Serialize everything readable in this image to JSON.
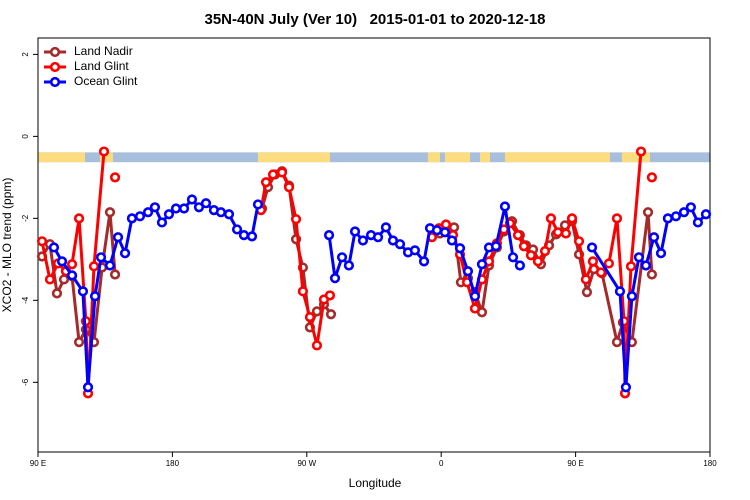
{
  "chart_data": {
    "type": "line",
    "title": "35N-40N July (Ver 10)   2015-01-01 to 2020-12-18",
    "xlabel": "Longitude",
    "ylabel": "XCO2 - MLO trend (ppm)",
    "xlim": [
      90,
      540
    ],
    "ylim": [
      -7.7,
      2.4
    ],
    "xticks": [
      {
        "value": 90,
        "label": "90 E"
      },
      {
        "value": 180,
        "label": "180"
      },
      {
        "value": 270,
        "label": "90 W"
      },
      {
        "value": 360,
        "label": "0"
      },
      {
        "value": 450,
        "label": "90 E"
      },
      {
        "value": 540,
        "label": "180"
      }
    ],
    "yticks": [
      2,
      0,
      -2,
      -4,
      -6
    ],
    "legend": "top-left",
    "strip": {
      "range": [
        -0.39,
        -0.63
      ],
      "ocean_color": "#a7bfdc",
      "land_color": "#fbdc7f",
      "land": [
        [
          90,
          121.5
        ],
        [
          131.5,
          140.2
        ],
        [
          237.3,
          285.5
        ],
        [
          351.1,
          359.2
        ],
        [
          362.5,
          379.3
        ],
        [
          386,
          392.7
        ],
        [
          402.7,
          473
        ],
        [
          481,
          499.8
        ]
      ]
    },
    "series": [
      {
        "name": "Land Nadir",
        "color": "#a52a2a",
        "x": [
          92.7,
          98.0,
          102.7,
          107.4,
          112.8,
          117.5,
          122.1,
          127.5,
          132.9,
          138.2,
          141.6,
          null,
          240.0,
          244.0,
          248.7,
          253.4,
          258.1,
          262.8,
          267.4,
          272.1,
          276.8,
          281.5,
          286.2,
          null,
          359.2,
          363.9,
          368.6,
          373.2,
          377.9,
          382.6,
          387.3,
          392.0,
          397.3,
          402.0,
          407.4,
          412.7,
          416.8,
          421.5,
          426.8,
          432.2,
          436.9,
          442.9,
          447.6,
          452.3,
          457.6,
          462.3,
          467.7,
          477.7,
          481.7,
          487.7,
          498.5,
          501.1
        ],
        "values": [
          -2.93,
          -2.63,
          -3.83,
          -3.49,
          -3.41,
          -5.02,
          -4.71,
          -5.02,
          -3.2,
          -1.85,
          -3.37,
          null,
          -1.76,
          -1.24,
          -0.93,
          -0.85,
          -1.2,
          -2.51,
          -3.2,
          -4.66,
          -4.27,
          -4.1,
          -4.34,
          null,
          -2.37,
          -2.27,
          -2.22,
          -3.56,
          -3.46,
          -3.8,
          -4.29,
          -3.15,
          -2.71,
          -2.32,
          -2.07,
          -2.41,
          -2.66,
          -2.76,
          -3.12,
          -2.66,
          -2.39,
          -2.17,
          -2.07,
          -2.88,
          -3.8,
          -3.24,
          -3.34,
          -5.02,
          -4.54,
          -5.02,
          -1.85,
          -3.37
        ]
      },
      {
        "name": "Land Glint",
        "color": "#ff0000",
        "x": [
          92.7,
          98.0,
          103.4,
          108.7,
          112.8,
          117.5,
          122.1,
          123.5,
          127.5,
          134.2,
          null,
          141.6,
          null,
          239.3,
          242.7,
          247.4,
          253.4,
          258.1,
          262.8,
          267.4,
          272.1,
          276.8,
          281.5,
          285.5,
          null,
          353.8,
          358.5,
          363.2,
          367.9,
          372.6,
          377.3,
          382.6,
          387.3,
          392.0,
          397.3,
          402.0,
          406.1,
          411.4,
          415.4,
          420.1,
          424.8,
          429.5,
          433.5,
          438.2,
          443.5,
          447.6,
          452.3,
          456.9,
          461.6,
          467.0,
          472.3,
          477.7,
          482.4,
          483.1,
          487.1,
          493.8,
          null,
          501.1
        ],
        "values": [
          -2.56,
          -3.49,
          -3.1,
          -3.29,
          -3.12,
          -2.0,
          -4.51,
          -6.27,
          -3.17,
          -0.37,
          null,
          -1.0,
          null,
          -1.8,
          -1.12,
          -0.93,
          -0.88,
          -1.24,
          -2.02,
          -3.78,
          -4.41,
          -5.1,
          -3.98,
          -3.88,
          null,
          -2.46,
          -2.24,
          -2.15,
          -2.41,
          -2.88,
          -3.56,
          -4.2,
          -3.49,
          -3.05,
          -2.61,
          -2.27,
          -2.12,
          -2.41,
          -2.68,
          -2.9,
          -3.05,
          -2.8,
          -2.0,
          -2.34,
          -2.37,
          -2.0,
          -2.56,
          -3.49,
          -3.05,
          -3.32,
          -3.1,
          -2.0,
          -4.51,
          -6.27,
          -3.17,
          -0.37,
          null,
          -1.0
        ]
      },
      {
        "name": "Ocean Glint",
        "color": "#0000ff",
        "x": [
          100.7,
          106.1,
          112.8,
          120.1,
          123.5,
          128.2,
          132.2,
          138.2,
          143.6,
          148.3,
          152.9,
          158.3,
          163.7,
          168.3,
          173.0,
          177.7,
          182.4,
          187.8,
          193.1,
          197.8,
          202.5,
          207.8,
          212.5,
          217.9,
          223.3,
          227.9,
          233.3,
          237.3,
          null,
          284.9,
          288.9,
          293.6,
          298.2,
          302.3,
          307.6,
          313.0,
          317.7,
          323.0,
          327.7,
          332.4,
          337.8,
          342.4,
          348.5,
          352.5,
          357.2,
          362.5,
          367.2,
          372.6,
          377.9,
          382.6,
          387.3,
          392.0,
          396.7,
          402.7,
          408.1,
          412.7,
          null,
          461.0,
          479.7,
          483.7,
          487.7,
          492.4,
          497.1,
          502.5,
          507.2,
          511.8,
          517.2,
          522.6,
          527.2,
          531.9,
          537.3
        ],
        "values": [
          -2.71,
          -3.05,
          -3.39,
          -3.78,
          -6.12,
          -3.9,
          -2.95,
          -3.15,
          -2.46,
          -2.85,
          -2.0,
          -1.95,
          -1.85,
          -1.73,
          -2.1,
          -1.9,
          -1.76,
          -1.76,
          -1.54,
          -1.73,
          -1.63,
          -1.8,
          -1.85,
          -1.9,
          -2.27,
          -2.41,
          -2.44,
          -1.66,
          null,
          -2.41,
          -3.46,
          -2.95,
          -3.15,
          -2.32,
          -2.54,
          -2.41,
          -2.46,
          -2.22,
          -2.54,
          -2.63,
          -2.83,
          -2.78,
          -3.05,
          -2.24,
          -2.29,
          -2.34,
          -2.54,
          -2.73,
          -3.29,
          -3.9,
          -3.12,
          -2.71,
          -2.68,
          -1.71,
          -2.95,
          -3.15,
          null,
          -2.71,
          -3.78,
          -6.12,
          -3.9,
          -2.95,
          -3.15,
          -2.46,
          -2.85,
          -2.0,
          -1.95,
          -1.85,
          -1.73,
          -2.1,
          -1.9
        ]
      }
    ]
  }
}
